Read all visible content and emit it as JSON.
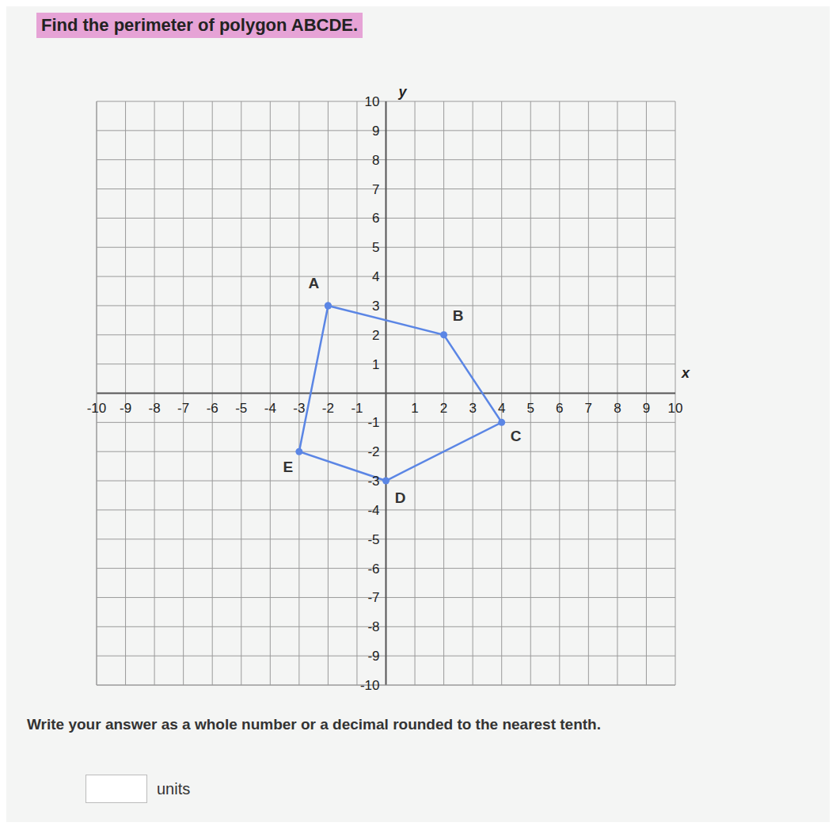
{
  "chart_data": {
    "type": "line",
    "title": "Find the perimeter of polygon ABCDE.",
    "x_label": "x",
    "y_label": "y",
    "x": [
      -2,
      2,
      4,
      0,
      -3,
      -2
    ],
    "series": [
      {
        "color": "#5b86e5",
        "values": [
          3,
          2,
          -1,
          -3,
          -2,
          3
        ],
        "point_labels": [
          "A",
          "B",
          "C",
          "D",
          "E",
          null
        ],
        "marker": "circle",
        "line_style": "solid"
      }
    ],
    "xlim": [
      -10,
      10
    ],
    "ylim": [
      -10,
      10
    ],
    "xticks": [
      -10,
      -9,
      -8,
      -7,
      -6,
      -5,
      -4,
      -3,
      -2,
      -1,
      1,
      2,
      3,
      4,
      5,
      6,
      7,
      8,
      9,
      10
    ],
    "yticks": [
      -10,
      -9,
      -8,
      -7,
      -6,
      -5,
      -4,
      -3,
      -2,
      -1,
      1,
      2,
      3,
      4,
      5,
      6,
      7,
      8,
      9,
      10
    ],
    "grid": true,
    "question": "Write your answer as a whole number or a decimal rounded to the nearest tenth.",
    "answer_unit": "units"
  }
}
